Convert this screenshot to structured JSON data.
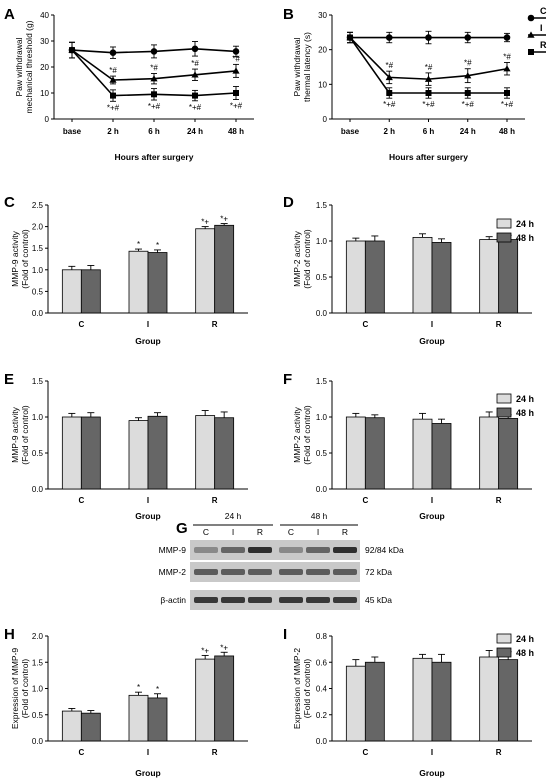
{
  "chart_data": [
    {
      "id": "A",
      "panel_label": "A",
      "type": "line",
      "x": [
        "base",
        "2 h",
        "6 h",
        "24 h",
        "48 h"
      ],
      "xlabel": "Hours after surgery",
      "ylabel": [
        "Paw withdrawal",
        "mechanical threshold (g)"
      ],
      "ylim": [
        0,
        40
      ],
      "yticks": [
        0,
        10,
        20,
        30,
        40
      ],
      "series": [
        {
          "name": "C",
          "marker": "circle",
          "values": [
            26.5,
            25.5,
            26,
            27,
            26
          ],
          "errors": [
            3,
            2.2,
            2.5,
            2.8,
            2
          ],
          "annotations": [
            "",
            "",
            "",
            "",
            ""
          ]
        },
        {
          "name": "I",
          "marker": "triangle",
          "values": [
            26.5,
            15,
            15.5,
            17,
            18.5
          ],
          "errors": [
            3,
            1.5,
            2,
            2.2,
            2.5
          ],
          "annotations": [
            "",
            "*#",
            "*#",
            "*#",
            "*#"
          ]
        },
        {
          "name": "R",
          "marker": "square",
          "values": [
            26.5,
            9,
            9.5,
            9,
            10
          ],
          "errors": [
            3,
            2.2,
            2.2,
            2,
            2.5
          ],
          "annotations": [
            "",
            "*+#",
            "*+#",
            "*+#",
            "*+#"
          ]
        }
      ]
    },
    {
      "id": "B",
      "panel_label": "B",
      "type": "line",
      "x": [
        "base",
        "2 h",
        "6 h",
        "24 h",
        "48 h"
      ],
      "xlabel": "Hours after surgery",
      "ylabel": [
        "Paw withdrawal",
        "thermal latency (s)"
      ],
      "ylim": [
        0,
        30
      ],
      "yticks": [
        0,
        10,
        20,
        30
      ],
      "series": [
        {
          "name": "C",
          "marker": "circle",
          "values": [
            23.5,
            23.5,
            23.5,
            23.5,
            23.5
          ],
          "errors": [
            1.5,
            1.5,
            1.8,
            1.5,
            1.2
          ],
          "annotations": [
            "",
            "",
            "",
            "",
            ""
          ]
        },
        {
          "name": "I",
          "marker": "triangle",
          "values": [
            23.5,
            12,
            11.5,
            12.5,
            14.5
          ],
          "errors": [
            1.5,
            1.8,
            1.8,
            2,
            1.8
          ],
          "annotations": [
            "",
            "*#",
            "*#",
            "*#",
            "*#"
          ]
        },
        {
          "name": "R",
          "marker": "square",
          "values": [
            23.5,
            7.5,
            7.5,
            7.5,
            7.5
          ],
          "errors": [
            1.5,
            1.5,
            1.5,
            1.5,
            1.5
          ],
          "annotations": [
            "",
            "*+#",
            "*+#",
            "*+#",
            "*+#"
          ]
        }
      ]
    },
    {
      "id": "C",
      "panel_label": "C",
      "type": "bar",
      "categories": [
        "C",
        "I",
        "R"
      ],
      "xlabel": "Group",
      "ylabel": [
        "MMP-9 activity",
        "(Fold of control)"
      ],
      "ylim": [
        0,
        2.5
      ],
      "yticks": [
        "0.0",
        "0.5",
        "1.0",
        "1.5",
        "2.0",
        "2.5"
      ],
      "series": [
        {
          "name": "24 h",
          "values": [
            1.0,
            1.43,
            1.95
          ],
          "errors": [
            0.08,
            0.05,
            0.05
          ],
          "annotations": [
            "",
            "*",
            "*+"
          ]
        },
        {
          "name": "48 h",
          "values": [
            1.0,
            1.4,
            2.03
          ],
          "errors": [
            0.1,
            0.06,
            0.04
          ],
          "annotations": [
            "",
            "*",
            "*+"
          ]
        }
      ]
    },
    {
      "id": "D",
      "panel_label": "D",
      "type": "bar",
      "categories": [
        "C",
        "I",
        "R"
      ],
      "xlabel": "Group",
      "ylabel": [
        "MMP-2 activity",
        "(Fold of control)"
      ],
      "ylim": [
        0,
        1.5
      ],
      "yticks": [
        "0.0",
        "0.5",
        "1.0",
        "1.5"
      ],
      "series": [
        {
          "name": "24 h",
          "values": [
            1.0,
            1.05,
            1.02
          ],
          "errors": [
            0.04,
            0.05,
            0.04
          ],
          "annotations": [
            "",
            "",
            ""
          ]
        },
        {
          "name": "48 h",
          "values": [
            1.0,
            0.98,
            1.02
          ],
          "errors": [
            0.07,
            0.05,
            0.06
          ],
          "annotations": [
            "",
            "",
            ""
          ]
        }
      ]
    },
    {
      "id": "E",
      "panel_label": "E",
      "type": "bar",
      "categories": [
        "C",
        "I",
        "R"
      ],
      "xlabel": "Group",
      "ylabel": [
        "MMP-9 activity",
        "(Fold of control)"
      ],
      "ylim": [
        0,
        1.5
      ],
      "yticks": [
        "0.0",
        "0.5",
        "1.0",
        "1.5"
      ],
      "series": [
        {
          "name": "24 h",
          "values": [
            1.0,
            0.95,
            1.02
          ],
          "errors": [
            0.05,
            0.04,
            0.07
          ],
          "annotations": [
            "",
            "",
            ""
          ]
        },
        {
          "name": "48 h",
          "values": [
            1.0,
            1.01,
            0.99
          ],
          "errors": [
            0.06,
            0.05,
            0.08
          ],
          "annotations": [
            "",
            "",
            ""
          ]
        }
      ]
    },
    {
      "id": "F",
      "panel_label": "F",
      "type": "bar",
      "categories": [
        "C",
        "I",
        "R"
      ],
      "xlabel": "Group",
      "ylabel": [
        "MMP-2 activity",
        "(Fold of control)"
      ],
      "ylim": [
        0,
        1.5
      ],
      "yticks": [
        "0.0",
        "0.5",
        "1.0",
        "1.5"
      ],
      "series": [
        {
          "name": "24 h",
          "values": [
            1.0,
            0.97,
            1.0
          ],
          "errors": [
            0.05,
            0.08,
            0.07
          ],
          "annotations": [
            "",
            "",
            ""
          ]
        },
        {
          "name": "48 h",
          "values": [
            0.99,
            0.91,
            0.98
          ],
          "errors": [
            0.04,
            0.06,
            0.05
          ],
          "annotations": [
            "",
            "",
            ""
          ]
        }
      ]
    },
    {
      "id": "H",
      "panel_label": "H",
      "type": "bar",
      "categories": [
        "C",
        "I",
        "R"
      ],
      "xlabel": "Group",
      "ylabel": [
        "Expression of MMP-9",
        "(Fold of control)"
      ],
      "ylim": [
        0,
        2.0
      ],
      "yticks": [
        "0.0",
        "0.5",
        "1.0",
        "1.5",
        "2.0"
      ],
      "series": [
        {
          "name": "24 h",
          "values": [
            0.57,
            0.87,
            1.56
          ],
          "errors": [
            0.05,
            0.06,
            0.07
          ],
          "annotations": [
            "",
            "*",
            "*+"
          ]
        },
        {
          "name": "48 h",
          "values": [
            0.53,
            0.82,
            1.62
          ],
          "errors": [
            0.05,
            0.08,
            0.07
          ],
          "annotations": [
            "",
            "*",
            "*+"
          ]
        }
      ]
    },
    {
      "id": "I",
      "panel_label": "I",
      "type": "bar",
      "categories": [
        "C",
        "I",
        "R"
      ],
      "xlabel": "Group",
      "ylabel": [
        "Expression of MMP-2",
        "(Fold of control)"
      ],
      "ylim": [
        0,
        0.8
      ],
      "yticks": [
        "0.0",
        "0.2",
        "0.4",
        "0.6",
        "0.8"
      ],
      "series": [
        {
          "name": "24 h",
          "values": [
            0.57,
            0.63,
            0.64
          ],
          "errors": [
            0.05,
            0.03,
            0.05
          ],
          "annotations": [
            "",
            "",
            ""
          ]
        },
        {
          "name": "48 h",
          "values": [
            0.6,
            0.6,
            0.62
          ],
          "errors": [
            0.04,
            0.06,
            0.06
          ],
          "annotations": [
            "",
            "",
            ""
          ]
        }
      ]
    }
  ],
  "legend_lines": [
    {
      "label": "C",
      "marker": "circle"
    },
    {
      "label": "I",
      "marker": "triangle"
    },
    {
      "label": "R",
      "marker": "square"
    }
  ],
  "legend_bars": [
    {
      "label": "24 h",
      "color": "#dcdcdc"
    },
    {
      "label": "48 h",
      "color": "#666666"
    }
  ],
  "blot": {
    "panel_label": "G",
    "groups": [
      "24 h",
      "48 h"
    ],
    "lanes": [
      "C",
      "I",
      "R",
      "C",
      "I",
      "R"
    ],
    "rows": [
      {
        "protein": "MMP-9",
        "kda": "92/84 kDa",
        "intensity": [
          0.35,
          0.55,
          0.85,
          0.35,
          0.55,
          0.85
        ]
      },
      {
        "protein": "MMP-2",
        "kda": "72 kDa",
        "intensity": [
          0.6,
          0.6,
          0.6,
          0.6,
          0.6,
          0.6
        ]
      },
      {
        "protein": "β-actin",
        "kda": "45 kDa",
        "intensity": [
          0.8,
          0.8,
          0.8,
          0.8,
          0.8,
          0.8
        ]
      }
    ]
  },
  "colors": {
    "bar_24h": "#dcdcdc",
    "bar_48h": "#666666",
    "axis": "#000000"
  }
}
